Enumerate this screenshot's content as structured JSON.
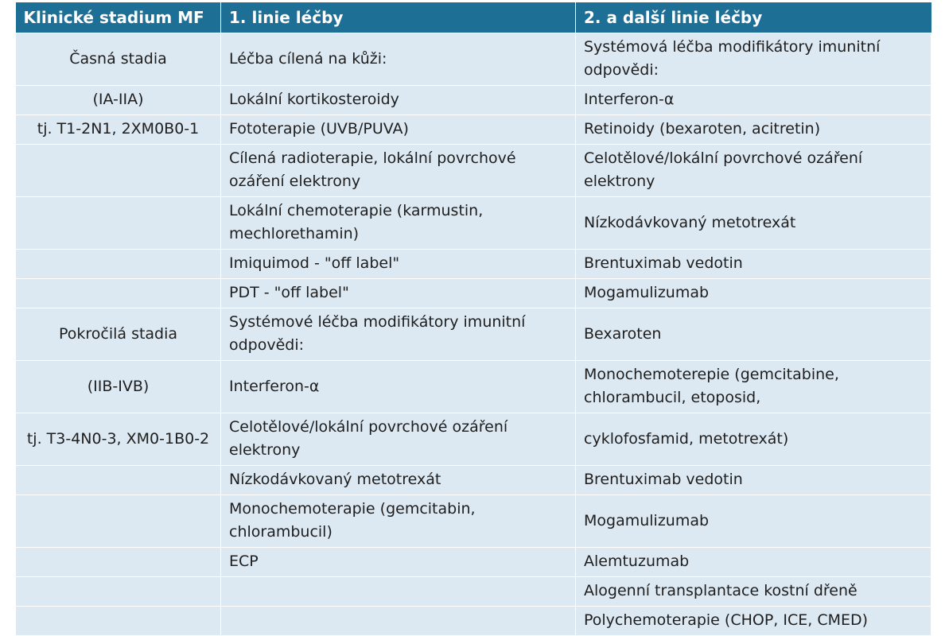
{
  "headers": [
    "Klinické stadium MF",
    "1. linie léčby",
    "2. a další linie léčby"
  ],
  "rows": [
    {
      "stage": "Časná stadia",
      "first": "Léčba cílená na kůži:",
      "second": "Systémová léčba modifikátory imunitní odpovědi:"
    },
    {
      "stage": "(IA-IIA)",
      "first": "Lokální kortikosteroidy",
      "second": "Interferon-α"
    },
    {
      "stage": "tj. T1-2N1, 2XM0B0-1",
      "first": "Fototerapie (UVB/PUVA)",
      "second": "Retinoidy (bexaroten, acitretin)"
    },
    {
      "stage": "",
      "first": "Cílená radioterapie, lokální povrchové ozáření elektrony",
      "second": "Celotělové/lokální povrchové ozáření elektrony"
    },
    {
      "stage": "",
      "first": "Lokální chemoterapie (karmustin, mechlorethamin)",
      "second": "Nízkodávkovaný metotrexát"
    },
    {
      "stage": "",
      "first": "Imiquimod - \"off label\"",
      "second": "Brentuximab vedotin"
    },
    {
      "stage": "",
      "first": "PDT - \"off label\"",
      "second": "Mogamulizumab"
    },
    {
      "stage": "Pokročilá stadia",
      "first": "Systémové léčba modifikátory imunitní odpovědi:",
      "second": "Bexaroten"
    },
    {
      "stage": "(IIB-IVB)",
      "first": "Interferon-α",
      "second": "Monochemoterepie (gemcitabine, chlorambucil, etoposid,"
    },
    {
      "stage": "tj. T3-4N0-3, XM0-1B0-2",
      "first": "Celotělové/lokální povrchové ozáření elektrony",
      "second": "cyklofosfamid, metotrexát)"
    },
    {
      "stage": "",
      "first": "Nízkodávkovaný metotrexát",
      "second": "Brentuximab vedotin"
    },
    {
      "stage": "",
      "first": "Monochemoterapie (gemcitabin, chlorambucil)",
      "second": "Mogamulizumab"
    },
    {
      "stage": "",
      "first": "ECP",
      "second": "Alemtuzumab"
    },
    {
      "stage": "",
      "first": "",
      "second": "Alogenní transplantace kostní dřeně"
    },
    {
      "stage": "",
      "first": "",
      "second": "Polychemoterapie (CHOP, ICE, CMED)"
    }
  ]
}
